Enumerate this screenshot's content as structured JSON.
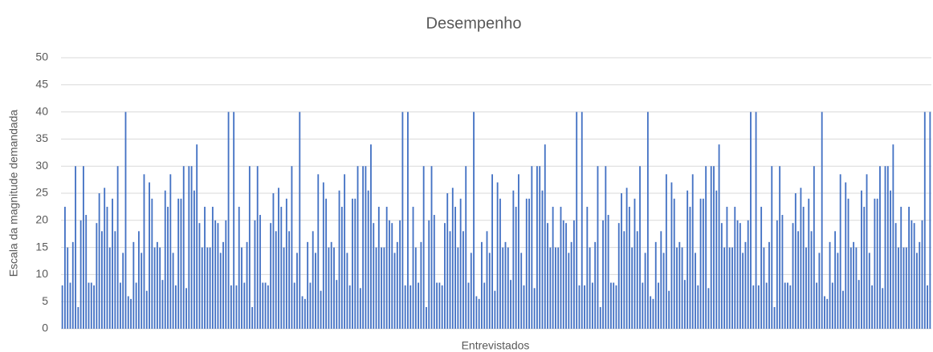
{
  "chart_data": {
    "type": "bar",
    "title": "Desempenho",
    "x_label": "Entrevistados",
    "y_label": "Escala da magnitude demandada",
    "categories": [
      null,
      null,
      null,
      null,
      null,
      null,
      null,
      null,
      null,
      null,
      null,
      null,
      null,
      null,
      null,
      null,
      null,
      null,
      null,
      null,
      null,
      null,
      null,
      null,
      null,
      null,
      null,
      null,
      null,
      null,
      null,
      null,
      null,
      null,
      null,
      null,
      null,
      null,
      null,
      null,
      null,
      null,
      null,
      null,
      null,
      null,
      null,
      null,
      null,
      null,
      null,
      null,
      null,
      null,
      null,
      null,
      null,
      null,
      null,
      null,
      null,
      null,
      null,
      null,
      null,
      null,
      null,
      null,
      null,
      null,
      null,
      null,
      null,
      null,
      null,
      null,
      null,
      null,
      null,
      null,
      null,
      null,
      null,
      null,
      null,
      null,
      null,
      null,
      null,
      null,
      null,
      null,
      null,
      null,
      null,
      null,
      null,
      null,
      null,
      null,
      null,
      null,
      null,
      null,
      null,
      null,
      null,
      null,
      null,
      null,
      null,
      null,
      null,
      null,
      null,
      null,
      null,
      null,
      null,
      null,
      null,
      null,
      null,
      null,
      null,
      null,
      null,
      null,
      null,
      null,
      null,
      null,
      null,
      null,
      null,
      null,
      null,
      null,
      null,
      null,
      null,
      null,
      null,
      null,
      null,
      null,
      null,
      null,
      null,
      null,
      null,
      null,
      null,
      null,
      null,
      null,
      null,
      null,
      null,
      null,
      null,
      null,
      null,
      null,
      null,
      null,
      null,
      null,
      null,
      null,
      null,
      null,
      null,
      null,
      null,
      null,
      null,
      null,
      null,
      null,
      null,
      null,
      null,
      null,
      null,
      null,
      null,
      null,
      null,
      null,
      null,
      null,
      null,
      null,
      null,
      null,
      null,
      null,
      null,
      null,
      null,
      null,
      null,
      null,
      null,
      null,
      null,
      null,
      null,
      null,
      null,
      null,
      null,
      null,
      null,
      null,
      null,
      null,
      null,
      null,
      null,
      null,
      null,
      null,
      null,
      null,
      null,
      null,
      null,
      null,
      null,
      null,
      null,
      null,
      null,
      null,
      null,
      null,
      null,
      null,
      null,
      null,
      null,
      null,
      null,
      null,
      null,
      null,
      null,
      null,
      null,
      null,
      null,
      null,
      null,
      null,
      null,
      null,
      null,
      null,
      null,
      null,
      null,
      null,
      null,
      null,
      null,
      null,
      null,
      null,
      null,
      null,
      null,
      null,
      null,
      null,
      null,
      null,
      null,
      null,
      null,
      null,
      null,
      null,
      null,
      null,
      null,
      null,
      null,
      null,
      null,
      null,
      null,
      null,
      null,
      null,
      null,
      null,
      null,
      null,
      null,
      null,
      null,
      null,
      null,
      null,
      null,
      null,
      null,
      null,
      null,
      null,
      null,
      null,
      null,
      null,
      null,
      null,
      null,
      null,
      null,
      null,
      null,
      null,
      null,
      null,
      null,
      null,
      null,
      null
    ],
    "values": [
      8,
      22.5,
      15,
      8.5,
      16,
      30,
      4,
      20,
      30,
      21,
      8.5,
      8.5,
      8,
      19.5,
      25,
      18,
      26,
      22.5,
      15,
      24,
      18,
      30,
      8.5,
      14,
      40,
      6,
      5.5,
      16,
      8.5,
      18,
      14,
      28.5,
      7,
      27,
      24,
      15,
      16,
      15,
      9,
      25.5,
      22.5,
      28.5,
      14,
      8,
      24,
      24,
      30,
      7.5,
      30,
      30,
      25.5,
      34,
      19.5,
      15,
      22.5,
      15,
      15,
      22.5,
      20,
      19.5,
      14,
      16,
      20,
      40,
      8,
      40,
      8,
      22.5,
      15,
      8.5,
      16,
      30,
      4,
      20,
      30,
      21,
      8.5,
      8.5,
      8,
      19.5,
      25,
      18,
      26,
      22.5,
      15,
      24,
      18,
      30,
      8.5,
      14,
      40,
      6,
      5.5,
      16,
      8.5,
      18,
      14,
      28.5,
      7,
      27,
      24,
      15,
      16,
      15,
      9,
      25.5,
      22.5,
      28.5,
      14,
      8,
      24,
      24,
      30,
      7.5,
      30,
      30,
      25.5,
      34,
      19.5,
      15,
      22.5,
      15,
      15,
      22.5,
      20,
      19.5,
      14,
      16,
      20,
      40,
      8,
      40,
      8,
      22.5,
      15,
      8.5,
      16,
      30,
      4,
      20,
      30,
      21,
      8.5,
      8.5,
      8,
      19.5,
      25,
      18,
      26,
      22.5,
      15,
      24,
      18,
      30,
      8.5,
      14,
      40,
      6,
      5.5,
      16,
      8.5,
      18,
      14,
      28.5,
      7,
      27,
      24,
      15,
      16,
      15,
      9,
      25.5,
      22.5,
      28.5,
      14,
      8,
      24,
      24,
      30,
      7.5,
      30,
      30,
      25.5,
      34,
      19.5,
      15,
      22.5,
      15,
      15,
      22.5,
      20,
      19.5,
      14,
      16,
      20,
      40,
      8,
      40,
      8,
      22.5,
      15,
      8.5,
      16,
      30,
      4,
      20,
      30,
      21,
      8.5,
      8.5,
      8,
      19.5,
      25,
      18,
      26,
      22.5,
      15,
      24,
      18,
      30,
      8.5,
      14,
      40,
      6,
      5.5,
      16,
      8.5,
      18,
      14,
      28.5,
      7,
      27,
      24,
      15,
      16,
      15,
      9,
      25.5,
      22.5,
      28.5,
      14,
      8,
      24,
      24,
      30,
      7.5,
      30,
      30,
      25.5,
      34,
      19.5,
      15,
      22.5,
      15,
      15,
      22.5,
      20,
      19.5,
      14,
      16,
      20,
      40,
      8,
      40,
      8,
      22.5,
      15,
      8.5,
      16,
      30,
      4,
      20,
      30,
      21,
      8.5,
      8.5,
      8,
      19.5,
      25,
      18,
      26,
      22.5,
      15,
      24,
      18,
      30,
      8.5,
      14,
      40,
      6,
      5.5,
      16,
      8.5,
      18,
      14,
      28.5,
      7,
      27,
      24,
      15,
      16,
      15,
      9,
      25.5,
      22.5,
      28.5,
      14,
      8,
      24,
      24,
      30,
      7.5,
      30,
      30,
      25.5,
      34,
      19.5,
      15,
      22.5,
      15,
      15,
      22.5,
      20,
      19.5,
      14,
      16,
      20,
      40,
      8,
      40
    ],
    "color": "#4472c4",
    "ylim": [
      0,
      50
    ],
    "yticks": [
      0,
      5,
      10,
      15,
      20,
      25,
      30,
      35,
      40,
      45,
      50
    ],
    "grid": true
  }
}
